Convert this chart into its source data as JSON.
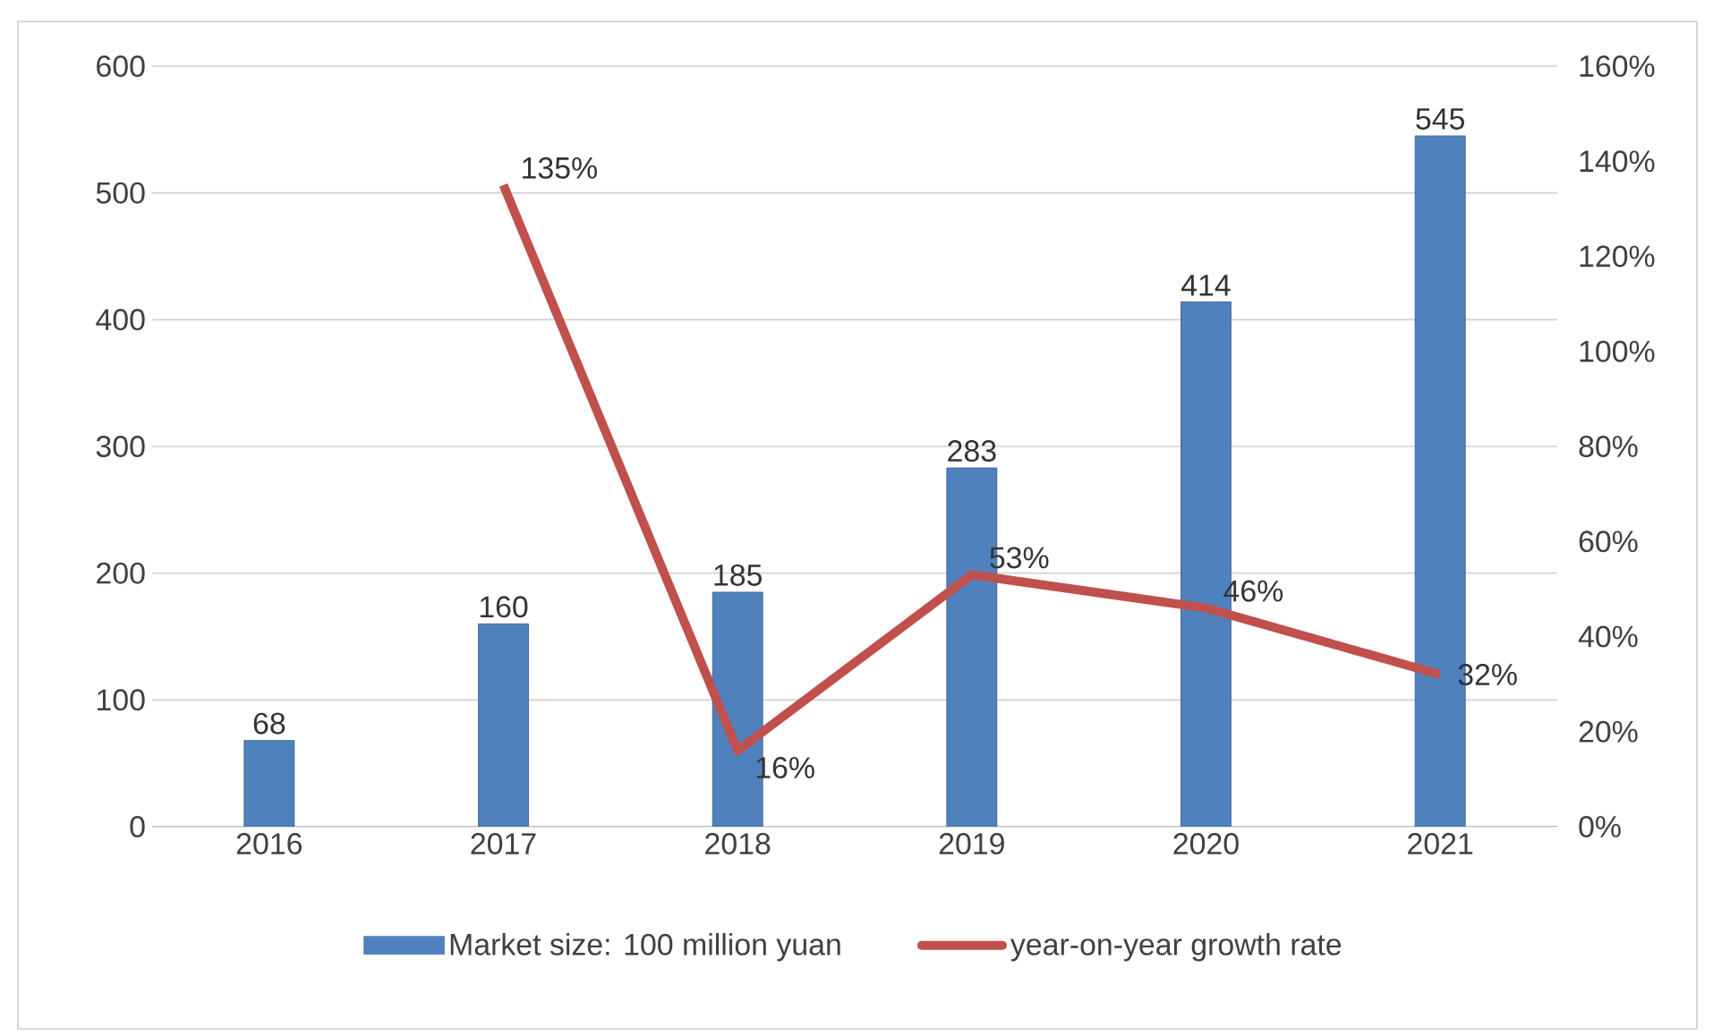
{
  "chart_data": {
    "type": "bar",
    "categories": [
      "2016",
      "2017",
      "2018",
      "2019",
      "2020",
      "2021"
    ],
    "series": [
      {
        "name": "Market size: 100 million yuan",
        "color": "#4f81bd",
        "values": [
          68,
          160,
          185,
          283,
          414,
          545
        ],
        "value_labels": [
          "68",
          "160",
          "185",
          "283",
          "414",
          "545"
        ]
      },
      {
        "name": "year-on-year growth rate",
        "type": "line",
        "axis": "y2",
        "color": "#c0504d",
        "values": [
          null,
          135,
          16,
          53,
          46,
          32
        ],
        "value_labels": [
          null,
          "135%",
          "16%",
          "53%",
          "46%",
          "32%"
        ]
      }
    ],
    "ylim": [
      0,
      600
    ],
    "yticks": [
      0,
      100,
      200,
      300,
      400,
      500,
      600
    ],
    "y2lim": [
      0,
      160
    ],
    "y2ticks": [
      {
        "value": 0,
        "label": "0%"
      },
      {
        "value": 20,
        "label": "20%"
      },
      {
        "value": 40,
        "label": "40%"
      },
      {
        "value": 60,
        "label": "60%"
      },
      {
        "value": 80,
        "label": "80%"
      },
      {
        "value": 100,
        "label": "100%"
      },
      {
        "value": 120,
        "label": "120%"
      },
      {
        "value": 140,
        "label": "140%"
      },
      {
        "value": 160,
        "label": "160%"
      }
    ],
    "grid": "y",
    "legend": "bottom",
    "marker": "none",
    "line_style": "solid"
  }
}
